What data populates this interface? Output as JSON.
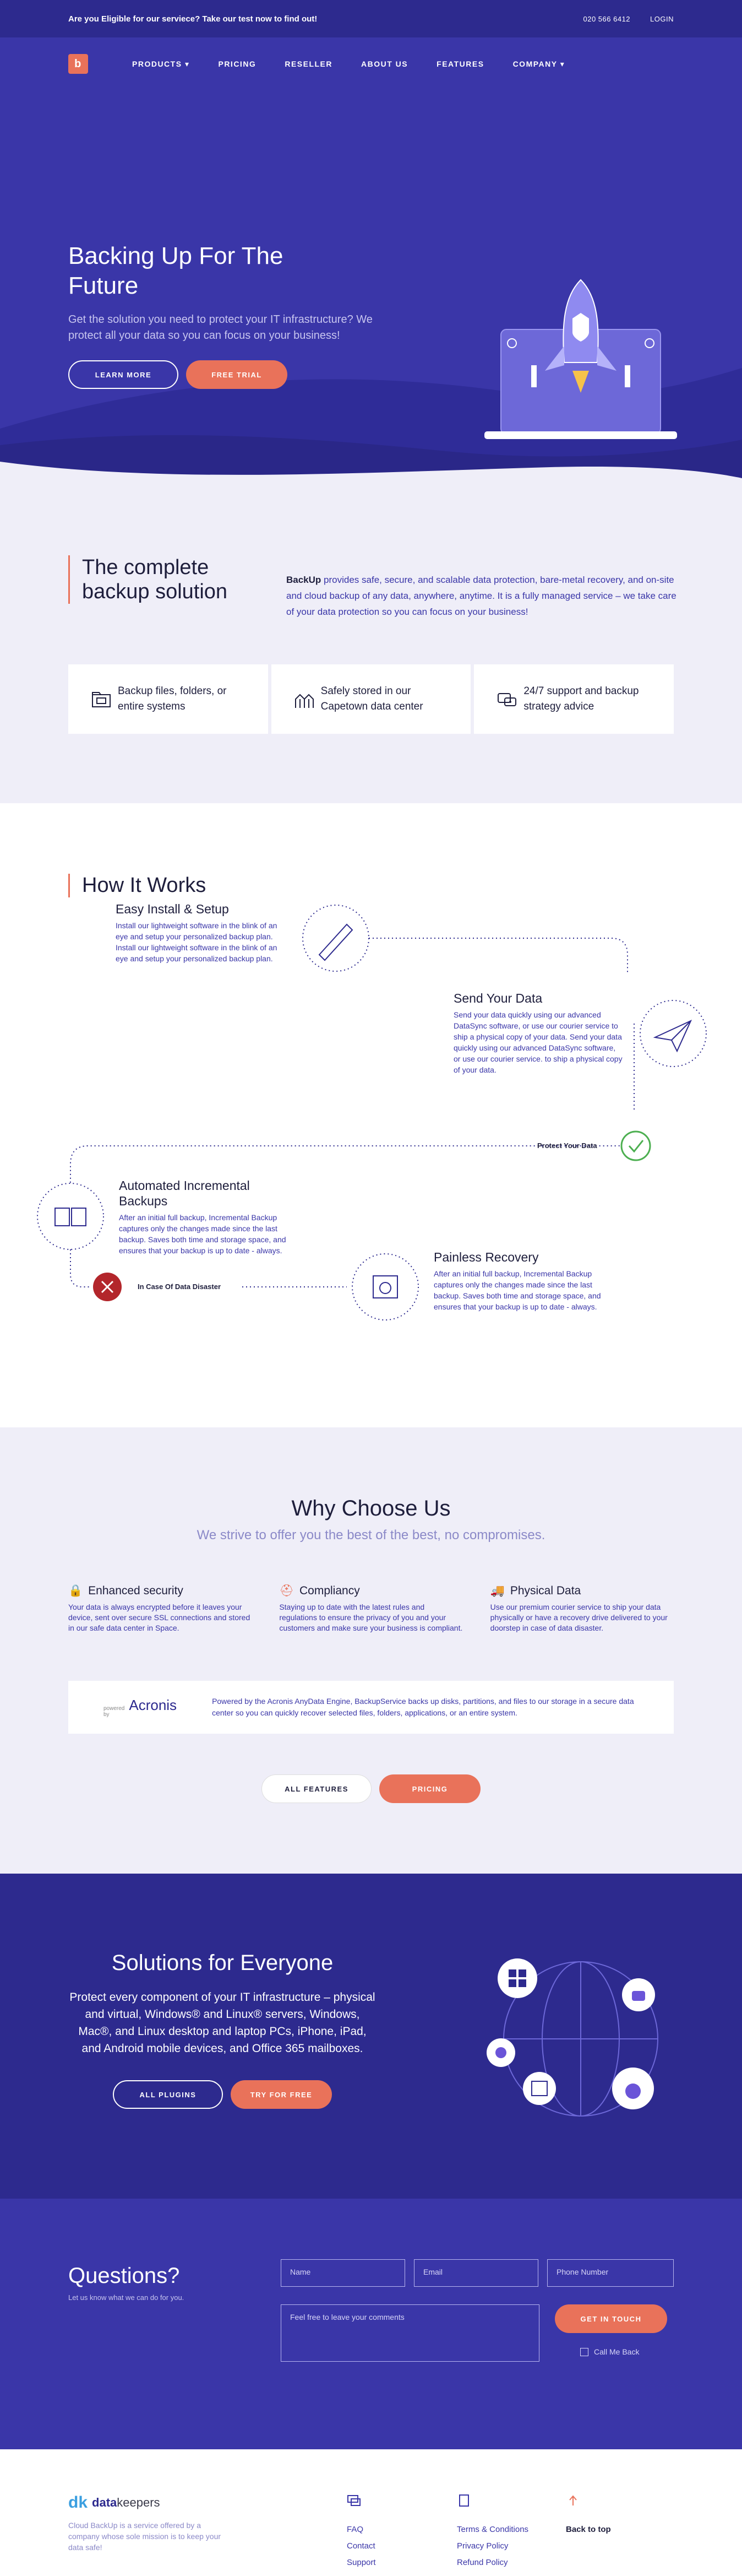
{
  "topbar": {
    "promo": "Are you Eligible for our serviece? Take our test now to find out!",
    "phone": "020 566 6412",
    "login": "LOGIN"
  },
  "nav": {
    "logo_letter": "b",
    "items": [
      "PRODUCTS",
      "PRICING",
      "RESELLER",
      "ABOUT US",
      "FEATURES",
      "COMPANY"
    ]
  },
  "hero": {
    "title_line1": "Backing Up For The",
    "title_line2": "Future",
    "text": "Get the solution you need to protect your IT infrastructure? We protect all your data so you can focus on your business!",
    "learn_more": "LEARN MORE",
    "free_trial": "FREE TRIAL"
  },
  "complete": {
    "title": "The complete backup solution",
    "brand": "BackUp",
    "desc": " provides safe, secure, and scalable data protection, bare-metal recovery, and on-site and cloud backup of any data, anywhere, anytime. It is a fully managed service – we take care of your data protection so you can focus on your business!",
    "features": [
      {
        "icon": "folder-icon",
        "text": "Backup files, folders, or entire systems"
      },
      {
        "icon": "building-icon",
        "text": "Safely stored in our Capetown data center"
      },
      {
        "icon": "support-icon",
        "text": "24/7 support and backup strategy advice"
      }
    ]
  },
  "how": {
    "title": "How It Works",
    "steps": [
      {
        "title": "Easy Install & Setup",
        "text": "Install our lightweight software in the blink of an eye and setup your personalized backup plan. Install our lightweight software in the blink of an eye and setup your personalized backup plan."
      },
      {
        "title": "Send Your Data",
        "text": "Send your data quickly using our advanced DataSync software, or use our courier service to ship a physical copy of your data. Send your data quickly using our advanced DataSync software, or use our courier service. to ship a physical copy of your data."
      },
      {
        "title": "Automated Incremental Backups",
        "text": "After an initial full backup, Incremental Backup captures only the changes made since the last backup. Saves both time and storage space, and ensures that your backup is up to date - always."
      },
      {
        "title": "Painless Recovery",
        "text": "After an initial full backup, Incremental Backup captures only the changes made since the last backup. Saves both time and storage space, and ensures that your backup is up to date - always."
      }
    ],
    "protect_label": "Protect Your Data",
    "disaster_label": "In Case Of Data Disaster"
  },
  "why": {
    "title": "Why Choose Us",
    "subtitle": "We strive to offer you the best of the best, no compromises.",
    "cols": [
      {
        "title": "Enhanced security",
        "text": "Your data is always encrypted before it leaves your device, sent over secure SSL connections and stored in our safe data center in Space."
      },
      {
        "title": "Compliancy",
        "text": "Staying up to date with the latest rules and regulations to ensure the privacy of you and your customers and make sure your business is compliant."
      },
      {
        "title": "Physical Data",
        "text": "Use our premium courier service to ship your data physically or have a recovery drive delivered to your doorstep in case of data disaster."
      }
    ],
    "acronis_powered": "powered by",
    "acronis_name": "Acronis",
    "acronis_text": "Powered by the Acronis AnyData Engine, BackupService backs up disks, partitions, and files to our storage in a secure data center so you can quickly recover selected files, folders, applications, or an entire system.",
    "all_features": "ALL FEATURES",
    "pricing": "PRICING"
  },
  "solutions": {
    "title": "Solutions for Everyone",
    "text": "Protect every component of your IT infrastructure – physical and virtual, Windows® and Linux® servers, Windows, Mac®, and Linux desktop and laptop PCs, iPhone, iPad, and Android mobile devices, and Office 365 mailboxes.",
    "all_plugins": "ALL PLUGINS",
    "try_free": "TRY FOR FREE"
  },
  "questions": {
    "title": "Questions?",
    "sub": "Let us know what we can do for you.",
    "name_ph": "Name",
    "email_ph": "Email",
    "phone_ph": "Phone Number",
    "comments_ph": "Feel free to leave your comments",
    "get_in_touch": "GET IN TOUCH",
    "call_me": "Call Me Back"
  },
  "footer": {
    "logo_mark": "dk",
    "logo_bold": "data",
    "logo_rest": "keepers",
    "desc": "Cloud BackUp is a service offered by a company whose sole mission is to keep your data safe!",
    "col1": [
      "FAQ",
      "Contact",
      "Support"
    ],
    "col2": [
      "Terms & Conditions",
      "Privacy Policy",
      "Refund Policy"
    ],
    "back_to_top": "Back to top"
  },
  "colors": {
    "primary": "#3a36a8",
    "dark": "#2d2a8e",
    "accent": "#e9725a",
    "light_bg": "#efeef8"
  }
}
